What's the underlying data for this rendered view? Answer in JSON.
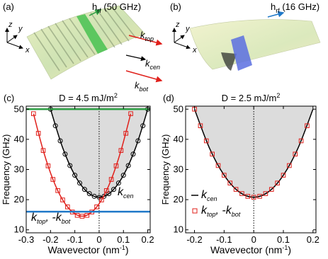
{
  "panels": [
    {
      "label": "(a)",
      "field": [
        "h",
        "rf",
        " (50 GHz)"
      ],
      "axes": [
        "z",
        "y",
        "x"
      ],
      "wavevectors": [
        [
          "k",
          "top"
        ],
        [
          "k",
          "cen"
        ],
        [
          "k",
          "bot"
        ]
      ]
    },
    {
      "label": "(b)",
      "field": [
        "h",
        "rf",
        " (16 GHz)"
      ],
      "axes": [
        "z",
        "y",
        "x"
      ]
    }
  ],
  "chart_data": [
    {
      "type": "line",
      "panel": "(c)",
      "title": [
        "D = 4.5 mJ/m",
        "2"
      ],
      "xlabel": [
        "Wavevector (nm",
        "-1",
        ")"
      ],
      "ylabel": "Frequency (GHz)",
      "xlim": [
        -0.3,
        0.21
      ],
      "ylim": [
        9,
        51
      ],
      "xticks": [
        -0.3,
        -0.2,
        -0.1,
        0,
        0.1,
        0.2
      ],
      "yticks": [
        10,
        20,
        30,
        40,
        50
      ],
      "vlines": [
        0
      ],
      "hlines": [
        {
          "value": 50,
          "color": "#2e9e44"
        },
        {
          "value": 16,
          "color": "#1f78c8"
        }
      ],
      "legend": false,
      "annotations": [
        {
          "text": [
            "k",
            "cen"
          ],
          "color": "#000000"
        },
        {
          "text": [
            "k",
            "top",
            ", -k",
            "bot"
          ],
          "color": "#e0201b"
        }
      ],
      "series": [
        {
          "style": "line",
          "color": "#000000",
          "fill_above": "#dcdcdc",
          "x": [
            -0.2,
            -0.15,
            -0.1,
            -0.05,
            0,
            0.05,
            0.1,
            0.15,
            0.2
          ],
          "values": [
            50,
            37.2,
            28.1,
            22.6,
            20.8,
            22.6,
            28.1,
            37.2,
            50
          ]
        },
        {
          "style": "circle",
          "color": "#000000",
          "x": [
            -0.2,
            -0.18,
            -0.16,
            -0.14,
            -0.12,
            -0.1,
            -0.08,
            -0.06,
            -0.04,
            -0.02,
            0,
            0.02,
            0.04,
            0.06,
            0.08,
            0.1,
            0.12,
            0.14,
            0.16,
            0.18,
            0.2
          ],
          "values": [
            50,
            44.5,
            39.5,
            35.1,
            31.3,
            28.1,
            25.5,
            23.4,
            22,
            21.1,
            20.8,
            21.1,
            22,
            23.4,
            25.5,
            28.1,
            31.3,
            35.1,
            39.5,
            44.5,
            50
          ]
        },
        {
          "style": "line",
          "color": "#e0201b",
          "x": [
            -0.27,
            -0.23,
            -0.19,
            -0.15,
            -0.11,
            -0.07,
            -0.03,
            0.01,
            0.05,
            0.09,
            0.13
          ],
          "values": [
            48.5,
            36.3,
            26.7,
            19.9,
            15.9,
            14.5,
            15.9,
            19.9,
            26.7,
            36.3,
            48.5
          ]
        },
        {
          "style": "square",
          "color": "#e0201b",
          "x": [
            -0.27,
            -0.25,
            -0.23,
            -0.21,
            -0.19,
            -0.17,
            -0.15,
            -0.13,
            -0.11,
            -0.09,
            -0.07,
            -0.05,
            -0.03,
            -0.01,
            0.01,
            0.03,
            0.05,
            0.07,
            0.09,
            0.11,
            0.13
          ],
          "values": [
            48.5,
            42,
            36.3,
            31.2,
            26.7,
            23,
            19.9,
            17.6,
            15.9,
            14.8,
            14.5,
            14.8,
            15.9,
            17.6,
            19.9,
            23,
            26.7,
            31.2,
            36.3,
            42,
            48.5
          ]
        }
      ]
    },
    {
      "type": "line",
      "panel": "(d)",
      "title": [
        "D = 2.5 mJ/m",
        "2"
      ],
      "xlabel": [
        "Wavevector (nm",
        "-1",
        ")"
      ],
      "ylabel": "Frequency (GHz)",
      "xlim": [
        -0.23,
        0.21
      ],
      "ylim": [
        9,
        51
      ],
      "xticks": [
        -0.2,
        -0.1,
        0,
        0.1,
        0.2
      ],
      "yticks": [
        10,
        20,
        30,
        40,
        50
      ],
      "vlines": [
        0
      ],
      "legend": true,
      "series": [
        {
          "name": [
            "k",
            "cen"
          ],
          "style": "line",
          "color": "#000000",
          "fill_above": "#dcdcdc",
          "x": [
            -0.2,
            -0.15,
            -0.1,
            -0.05,
            0,
            0.05,
            0.1,
            0.15,
            0.2
          ],
          "values": [
            50,
            37.2,
            28.1,
            22.6,
            20.8,
            22.6,
            28.1,
            37.2,
            50
          ]
        },
        {
          "name": [
            "k",
            "top",
            ", -k",
            "bot"
          ],
          "style": "square",
          "color": "#e0201b",
          "x": [
            -0.2,
            -0.18,
            -0.16,
            -0.14,
            -0.12,
            -0.1,
            -0.08,
            -0.06,
            -0.04,
            -0.02,
            0,
            0.02,
            0.04,
            0.06,
            0.08,
            0.1,
            0.12,
            0.14,
            0.16,
            0.18
          ],
          "values": [
            50,
            44.5,
            39.5,
            35.1,
            31.3,
            28.1,
            25.5,
            23.4,
            22,
            21.1,
            20.8,
            21.1,
            22,
            23.4,
            25.5,
            28.1,
            31.3,
            35.1,
            39.5,
            44.5
          ]
        }
      ]
    }
  ]
}
